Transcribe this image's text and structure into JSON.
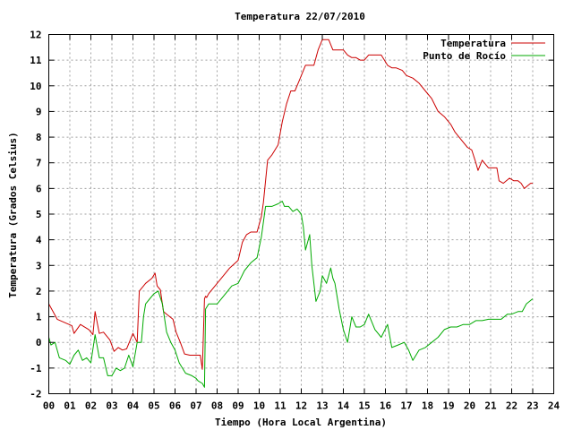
{
  "chart_data": {
    "type": "line",
    "title": "Temperatura 22/07/2010",
    "xlabel": "Tiempo (Hora Local Argentina)",
    "ylabel": "Temperatura (Grados Celsius)",
    "xlim": [
      0,
      24
    ],
    "ylim": [
      -2,
      12
    ],
    "x_ticks": [
      "00",
      "01",
      "02",
      "03",
      "04",
      "05",
      "06",
      "07",
      "08",
      "09",
      "10",
      "11",
      "12",
      "13",
      "14",
      "15",
      "16",
      "17",
      "18",
      "19",
      "20",
      "21",
      "22",
      "23",
      "24"
    ],
    "y_ticks": [
      "-2",
      "-1",
      "0",
      "1",
      "2",
      "3",
      "4",
      "5",
      "6",
      "7",
      "8",
      "9",
      "10",
      "11",
      "12"
    ],
    "grid": true,
    "legend_position": "top-right",
    "series": [
      {
        "name": "Temperatura",
        "color": "#cc0000",
        "x": [
          0,
          0.2,
          0.4,
          1.1,
          1.2,
          1.5,
          1.9,
          2.1,
          2.2,
          2.4,
          2.6,
          2.9,
          3.1,
          3.3,
          3.5,
          3.7,
          4.0,
          4.2,
          4.3,
          4.4,
          4.5,
          4.6,
          4.9,
          5.05,
          5.15,
          5.3,
          5.45,
          5.6,
          5.9,
          6.05,
          6.25,
          6.45,
          6.7,
          7.0,
          7.2,
          7.3,
          7.4,
          7.45,
          7.5,
          7.6,
          8.0,
          8.3,
          8.6,
          9.0,
          9.2,
          9.4,
          9.6,
          9.9,
          10.1,
          10.2,
          10.4,
          10.6,
          10.9,
          11.1,
          11.3,
          11.5,
          11.7,
          11.9,
          12.2,
          12.4,
          12.6,
          12.8,
          13.0,
          13.2,
          13.3,
          13.5,
          13.7,
          14.0,
          14.2,
          14.4,
          14.6,
          14.8,
          15.0,
          15.2,
          15.4,
          15.6,
          15.8,
          16.1,
          16.3,
          16.5,
          16.8,
          17.0,
          17.3,
          17.6,
          17.9,
          18.2,
          18.5,
          18.8,
          19.1,
          19.3,
          19.6,
          19.9,
          20.1,
          20.3,
          20.4,
          20.6,
          20.9,
          21.1,
          21.3,
          21.4,
          21.6,
          21.9,
          22.1,
          22.3,
          22.45,
          22.6,
          22.9,
          23.0
        ],
        "y": [
          1.5,
          1.2,
          0.9,
          0.65,
          0.35,
          0.7,
          0.5,
          0.3,
          1.2,
          0.35,
          0.4,
          0.1,
          -0.35,
          -0.2,
          -0.3,
          -0.25,
          0.35,
          0.0,
          2.0,
          2.1,
          2.2,
          2.3,
          2.5,
          2.7,
          2.2,
          2.05,
          1.2,
          1.1,
          0.9,
          0.4,
          0.0,
          -0.45,
          -0.5,
          -0.5,
          -0.5,
          -1.05,
          1.7,
          1.8,
          1.75,
          1.9,
          2.3,
          2.6,
          2.9,
          3.2,
          3.9,
          4.2,
          4.3,
          4.3,
          4.9,
          5.45,
          7.1,
          7.3,
          7.7,
          8.6,
          9.3,
          9.8,
          9.8,
          10.2,
          10.8,
          10.8,
          10.8,
          11.4,
          11.8,
          11.8,
          11.8,
          11.4,
          11.4,
          11.4,
          11.2,
          11.1,
          11.1,
          11.0,
          11.0,
          11.2,
          11.2,
          11.2,
          11.2,
          10.8,
          10.7,
          10.7,
          10.6,
          10.4,
          10.3,
          10.1,
          9.8,
          9.5,
          9.0,
          8.8,
          8.5,
          8.2,
          7.9,
          7.6,
          7.5,
          7.0,
          6.7,
          7.1,
          6.8,
          6.8,
          6.8,
          6.3,
          6.2,
          6.4,
          6.3,
          6.3,
          6.2,
          6.0,
          6.2,
          6.2
        ]
      },
      {
        "name": "Punto de Rocío",
        "color": "#00aa00",
        "x": [
          0,
          0.1,
          0.3,
          0.5,
          0.8,
          1.0,
          1.2,
          1.4,
          1.6,
          1.8,
          2.0,
          2.2,
          2.4,
          2.6,
          2.8,
          3.0,
          3.2,
          3.4,
          3.6,
          3.8,
          4.0,
          4.2,
          4.4,
          4.5,
          4.6,
          4.8,
          5.0,
          5.2,
          5.4,
          5.6,
          5.8,
          6.0,
          6.2,
          6.5,
          6.8,
          7.0,
          7.1,
          7.3,
          7.4,
          7.45,
          7.6,
          8.0,
          8.3,
          8.7,
          9.0,
          9.3,
          9.6,
          9.9,
          10.1,
          10.3,
          10.6,
          10.9,
          11.1,
          11.2,
          11.4,
          11.6,
          11.8,
          12.0,
          12.1,
          12.2,
          12.4,
          12.5,
          12.7,
          12.9,
          13.0,
          13.2,
          13.4,
          13.5,
          13.6,
          13.8,
          14.0,
          14.2,
          14.4,
          14.6,
          14.8,
          15.0,
          15.2,
          15.5,
          15.8,
          16.1,
          16.3,
          16.6,
          16.9,
          17.1,
          17.3,
          17.6,
          17.9,
          18.2,
          18.5,
          18.8,
          19.1,
          19.4,
          19.7,
          20.0,
          20.3,
          20.6,
          20.9,
          21.2,
          21.5,
          21.8,
          22.0,
          22.3,
          22.5,
          22.7,
          23.0
        ],
        "y": [
          0.2,
          -0.1,
          0.0,
          -0.6,
          -0.7,
          -0.85,
          -0.5,
          -0.3,
          -0.7,
          -0.6,
          -0.8,
          0.3,
          -0.6,
          -0.6,
          -1.3,
          -1.3,
          -1.0,
          -1.1,
          -1.0,
          -0.5,
          -0.95,
          0.0,
          0.0,
          1.0,
          1.5,
          1.7,
          1.9,
          2.0,
          1.5,
          0.4,
          0.0,
          -0.3,
          -0.8,
          -1.2,
          -1.3,
          -1.4,
          -1.5,
          -1.6,
          -1.75,
          1.3,
          1.5,
          1.5,
          1.8,
          2.2,
          2.3,
          2.8,
          3.1,
          3.3,
          4.1,
          5.3,
          5.3,
          5.4,
          5.5,
          5.3,
          5.3,
          5.1,
          5.2,
          5.0,
          4.5,
          3.6,
          4.2,
          3.0,
          1.6,
          2.0,
          2.6,
          2.3,
          2.9,
          2.5,
          2.3,
          1.3,
          0.5,
          0.0,
          1.0,
          0.6,
          0.6,
          0.7,
          1.1,
          0.5,
          0.2,
          0.7,
          -0.2,
          -0.1,
          0.0,
          -0.3,
          -0.7,
          -0.3,
          -0.2,
          0.0,
          0.2,
          0.5,
          0.6,
          0.6,
          0.7,
          0.7,
          0.85,
          0.85,
          0.9,
          0.9,
          0.9,
          1.1,
          1.1,
          1.2,
          1.2,
          1.5,
          1.7
        ]
      }
    ]
  }
}
